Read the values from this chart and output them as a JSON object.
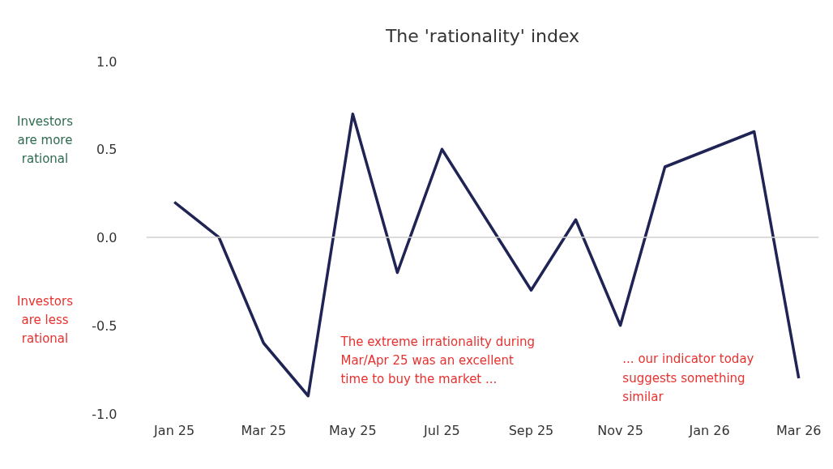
{
  "chart_data": {
    "type": "line",
    "title": "The 'rationality' index",
    "categories": [
      "Jan 25",
      null,
      "Mar 25",
      null,
      "May 25",
      null,
      "Jul 25",
      null,
      "Sep 25",
      null,
      "Nov 25",
      null,
      "Jan 26",
      null,
      "Mar 26"
    ],
    "series": [
      {
        "color": "#1f2454",
        "values": [
          0.2,
          0.0,
          -0.6,
          -0.9,
          0.7,
          -0.2,
          0.5,
          0.1,
          -0.3,
          0.1,
          -0.5,
          0.4,
          0.5,
          0.6,
          -0.8
        ]
      }
    ],
    "ylim": [
      -1,
      1
    ],
    "yticks": [
      {
        "value": -1,
        "label": "-1.0"
      },
      {
        "value": -0.5,
        "label": "-0.5"
      },
      {
        "value": 0,
        "label": "0.0"
      },
      {
        "value": 0.5,
        "label": "0.5"
      },
      {
        "value": 1,
        "label": "1.0"
      }
    ],
    "ref_lines": [
      {
        "axis": "y",
        "value": 0,
        "color": "#d0d0d0"
      }
    ],
    "grid": false,
    "marker": "none",
    "line_style": "solid",
    "annotations": [
      "Investors\nare more\nrational",
      "Investors\nare less\nrational",
      "The extreme irrationality during\nMar/Apr 25 was an excellent\ntime to buy the market ...",
      "... our indicator today\nsuggests something\nsimilar"
    ]
  }
}
